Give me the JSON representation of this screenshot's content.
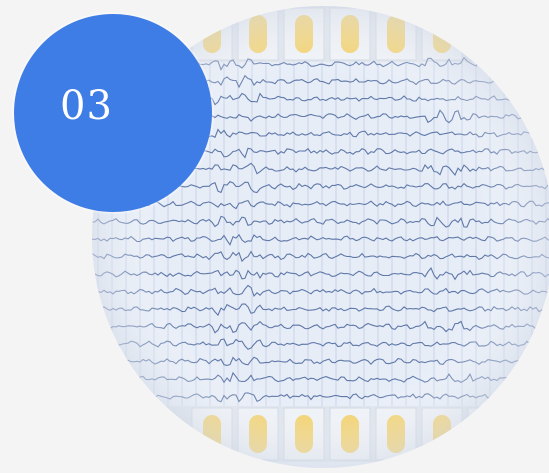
{
  "badge": {
    "label": "03"
  },
  "colors": {
    "badge": "#3f7de6",
    "paper": "#e7edf7",
    "trace": "#5f78a8",
    "capsule": "#f2cf66",
    "grid": "#c8d4ea"
  },
  "photo": {
    "subject": "eeg-strip-with-capsules"
  }
}
